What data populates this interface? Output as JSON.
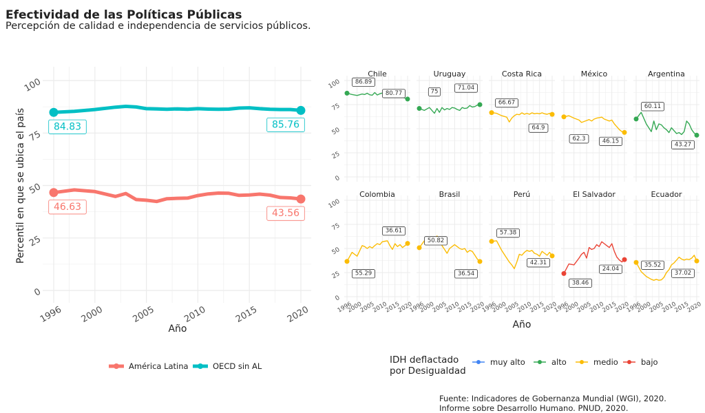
{
  "title": "Efectividad de las Políticas Públicas",
  "subtitle": "Percepción de calidad e independencia de servicios públicos.",
  "footer": [
    "Fuente: Indicadores de Gobernanza Mundial (WGI), 2020.",
    "Informe sobre Desarrollo Humano. PNUD, 2020."
  ],
  "colors": {
    "america_latina": "#F8766D",
    "oecd": "#00BFC4",
    "muy_alto": "#4285F4",
    "alto": "#34A853",
    "medio": "#FBBC04",
    "bajo": "#EA4335",
    "grid": "#ebebeb",
    "axis_text": "#4d4d4d"
  },
  "chart_data": [
    {
      "type": "line",
      "xlabel": "Año",
      "ylabel": "Percentil en que se ubica el país",
      "xlim": [
        1996,
        2020
      ],
      "ylim": [
        0,
        100
      ],
      "x_ticks": [
        1996,
        2000,
        2005,
        2010,
        2015,
        2020
      ],
      "y_ticks": [
        0,
        25,
        50,
        75,
        100
      ],
      "legend_position": "bottom",
      "x": [
        1996,
        1998,
        2000,
        2002,
        2003,
        2004,
        2005,
        2006,
        2007,
        2008,
        2009,
        2010,
        2011,
        2012,
        2013,
        2014,
        2015,
        2016,
        2017,
        2018,
        2019,
        2020
      ],
      "series": [
        {
          "name": "América Latina",
          "color_key": "america_latina",
          "values": [
            46.63,
            47.9,
            47.1,
            44.8,
            46.2,
            43.3,
            43.0,
            42.4,
            43.7,
            43.9,
            44.0,
            45.2,
            46.0,
            46.4,
            46.3,
            45.3,
            45.5,
            45.9,
            45.4,
            44.3,
            44.1,
            43.56
          ],
          "start_label": "46.63",
          "end_label": "43.56"
        },
        {
          "name": "OECD sin AL",
          "color_key": "oecd",
          "values": [
            84.83,
            85.3,
            86.2,
            87.3,
            87.7,
            87.4,
            86.6,
            86.5,
            86.3,
            86.5,
            86.3,
            86.6,
            86.4,
            86.3,
            86.4,
            86.9,
            87.0,
            86.6,
            86.3,
            86.2,
            86.2,
            85.76
          ],
          "start_label": "84.83",
          "end_label": "85.76"
        }
      ]
    },
    {
      "type": "line",
      "xlabel": "Año",
      "ylim": [
        0,
        100
      ],
      "y_ticks": [
        0,
        25,
        50,
        75,
        100
      ],
      "x_ticks": [
        1996,
        2000,
        2005,
        2010,
        2015,
        2020
      ],
      "legend_title": "IDH deflactado por Desigualdad",
      "legend_levels": [
        {
          "label": "muy alto",
          "color_key": "muy_alto"
        },
        {
          "label": "alto",
          "color_key": "alto"
        },
        {
          "label": "medio",
          "color_key": "medio"
        },
        {
          "label": "bajo",
          "color_key": "bajo"
        }
      ],
      "x": [
        1996,
        1998,
        2000,
        2002,
        2003,
        2004,
        2005,
        2006,
        2007,
        2008,
        2009,
        2010,
        2011,
        2012,
        2013,
        2014,
        2015,
        2016,
        2017,
        2018,
        2019,
        2020
      ],
      "panels": [
        {
          "name": "Chile",
          "level": "alto",
          "max_label": "86.89",
          "min_label": "80.77",
          "values": [
            86.89,
            85.5,
            84.5,
            86.0,
            85.5,
            86.8,
            85.2,
            84.8,
            87.5,
            85.0,
            86.3,
            87.0,
            85.8,
            85.2,
            86.1,
            85.4,
            83.5,
            84.2,
            83.1,
            82.6,
            81.8,
            80.77
          ]
        },
        {
          "name": "Uruguay",
          "level": "alto",
          "max_label": "75",
          "min_label": "71.04",
          "values": [
            71.04,
            69.0,
            72.0,
            66.0,
            71.0,
            67.0,
            72.0,
            69.5,
            71.0,
            70.0,
            72.0,
            71.5,
            70.0,
            69.0,
            72.0,
            71.0,
            71.5,
            74.0,
            72.5,
            73.0,
            74.5,
            75.0
          ]
        },
        {
          "name": "Costa Rica",
          "level": "medio",
          "max_label": "66.67",
          "min_label": "64.9",
          "values": [
            66.67,
            66.0,
            63.5,
            62.0,
            57.0,
            61.0,
            63.5,
            65.0,
            64.5,
            66.5,
            65.0,
            66.0,
            65.0,
            66.5,
            65.5,
            66.0,
            65.5,
            66.5,
            65.5,
            65.0,
            66.0,
            64.9
          ]
        },
        {
          "name": "México",
          "level": "medio",
          "max_label": "62.3",
          "min_label": "46.15",
          "values": [
            62.3,
            63.5,
            61.0,
            59.0,
            56.5,
            57.5,
            58.5,
            59.5,
            58.0,
            60.0,
            61.0,
            61.5,
            62.0,
            60.0,
            59.0,
            58.0,
            59.0,
            55.0,
            52.0,
            49.0,
            47.0,
            46.15
          ]
        },
        {
          "name": "Argentina",
          "level": "alto",
          "max_label": "60.11",
          "min_label": "43.27",
          "values": [
            60.11,
            67.0,
            55.0,
            47.0,
            58.0,
            49.0,
            55.0,
            54.0,
            51.0,
            49.0,
            46.0,
            51.0,
            48.0,
            45.0,
            46.0,
            44.0,
            47.0,
            58.0,
            55.0,
            49.0,
            45.5,
            43.27
          ]
        },
        {
          "name": "Colombia",
          "level": "medio",
          "max_label": "55.29",
          "min_label": "36.61",
          "values": [
            36.61,
            46.0,
            42.0,
            53.0,
            52.0,
            50.0,
            52.0,
            50.5,
            53.0,
            55.0,
            54.0,
            57.0,
            57.5,
            58.0,
            53.0,
            49.0,
            55.0,
            52.0,
            54.0,
            51.0,
            53.0,
            55.29
          ]
        },
        {
          "name": "Brasil",
          "level": "medio",
          "max_label": "50.82",
          "min_label": "36.54",
          "values": [
            50.82,
            58.0,
            61.0,
            58.0,
            63.0,
            59.0,
            53.0,
            49.0,
            45.0,
            50.0,
            52.0,
            54.0,
            52.0,
            50.0,
            49.0,
            50.0,
            46.0,
            48.0,
            47.0,
            43.0,
            39.0,
            36.54
          ]
        },
        {
          "name": "Perú",
          "level": "medio",
          "max_label": "57.38",
          "min_label": "42.31",
          "values": [
            57.38,
            58.0,
            48.0,
            40.0,
            36.0,
            33.0,
            29.0,
            36.0,
            44.0,
            43.0,
            46.0,
            48.0,
            47.0,
            48.0,
            45.0,
            44.0,
            42.0,
            47.0,
            45.0,
            43.0,
            46.0,
            42.31
          ]
        },
        {
          "name": "El Salvador",
          "level": "bajo",
          "max_label": "38.46",
          "min_label": "24.04",
          "values": [
            24.04,
            34.0,
            33.0,
            40.0,
            44.0,
            46.0,
            40.0,
            51.0,
            49.0,
            50.0,
            54.0,
            52.0,
            57.0,
            55.0,
            53.0,
            51.0,
            55.0,
            47.0,
            41.0,
            38.0,
            36.0,
            38.46
          ]
        },
        {
          "name": "Ecuador",
          "level": "medio",
          "max_label": "35.52",
          "min_label": "37.02",
          "values": [
            35.52,
            26.0,
            21.0,
            18.0,
            17.0,
            18.0,
            17.0,
            17.5,
            20.0,
            25.0,
            28.0,
            33.0,
            35.0,
            38.0,
            41.0,
            39.0,
            38.0,
            39.0,
            38.5,
            40.0,
            43.0,
            37.02
          ]
        }
      ]
    }
  ]
}
